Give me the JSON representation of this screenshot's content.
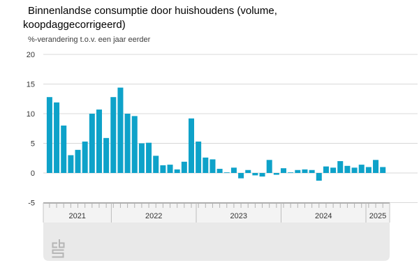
{
  "header": {
    "title": "Binnenlandse consumptie door huishoudens (volume, koopdaggecorrigeerd)",
    "subtitle": "%-verandering t.o.v. een jaar eerder"
  },
  "chart_data": {
    "type": "bar",
    "title": "Binnenlandse consumptie door huishoudens (volume, koopdaggecorrigeerd)",
    "ylabel": "%-verandering t.o.v. een jaar eerder",
    "unit": "%",
    "ylim": [
      -5,
      20
    ],
    "yticks": [
      20,
      15,
      10,
      5,
      0,
      -5
    ],
    "grid": true,
    "legend": "none",
    "x_year_labels": [
      "2021",
      "2022",
      "2023",
      "2024",
      "2025"
    ],
    "x": [
      "2021-04",
      "2021-05",
      "2021-06",
      "2021-07",
      "2021-08",
      "2021-09",
      "2021-10",
      "2021-11",
      "2021-12",
      "2022-01",
      "2022-02",
      "2022-03",
      "2022-04",
      "2022-05",
      "2022-06",
      "2022-07",
      "2022-08",
      "2022-09",
      "2022-10",
      "2022-11",
      "2022-12",
      "2023-01",
      "2023-02",
      "2023-03",
      "2023-04",
      "2023-05",
      "2023-06",
      "2023-07",
      "2023-08",
      "2023-09",
      "2023-10",
      "2023-11",
      "2023-12",
      "2024-01",
      "2024-02",
      "2024-03",
      "2024-04",
      "2024-05",
      "2024-06",
      "2024-07",
      "2024-08",
      "2024-09",
      "2024-10",
      "2024-11",
      "2024-12",
      "2025-01",
      "2025-02",
      "2025-03"
    ],
    "values": [
      12.8,
      11.9,
      8.0,
      3.0,
      3.9,
      5.3,
      10.0,
      10.7,
      5.9,
      12.8,
      14.4,
      10.0,
      9.6,
      5.0,
      5.1,
      2.9,
      1.3,
      1.4,
      0.6,
      1.9,
      9.2,
      5.3,
      2.6,
      2.3,
      0.7,
      0.1,
      0.9,
      -0.9,
      0.5,
      -0.4,
      -0.6,
      2.2,
      -0.3,
      0.8,
      0.1,
      0.5,
      0.6,
      0.5,
      -1.3,
      1.1,
      0.9,
      2.0,
      1.2,
      0.9,
      1.4,
      1.0,
      2.2,
      1.0
    ]
  },
  "logo": {
    "name": "CBS"
  },
  "colors": {
    "bar": "#0ea2c9",
    "gridline": "#d8d8d8",
    "axis_text": "#333333",
    "band_border": "#9b9b9b",
    "band_fill": "#f3f3f3",
    "panel_fill": "#e9e9e9",
    "tick": "#b3b3b3",
    "logo": "#b5b5b5"
  }
}
